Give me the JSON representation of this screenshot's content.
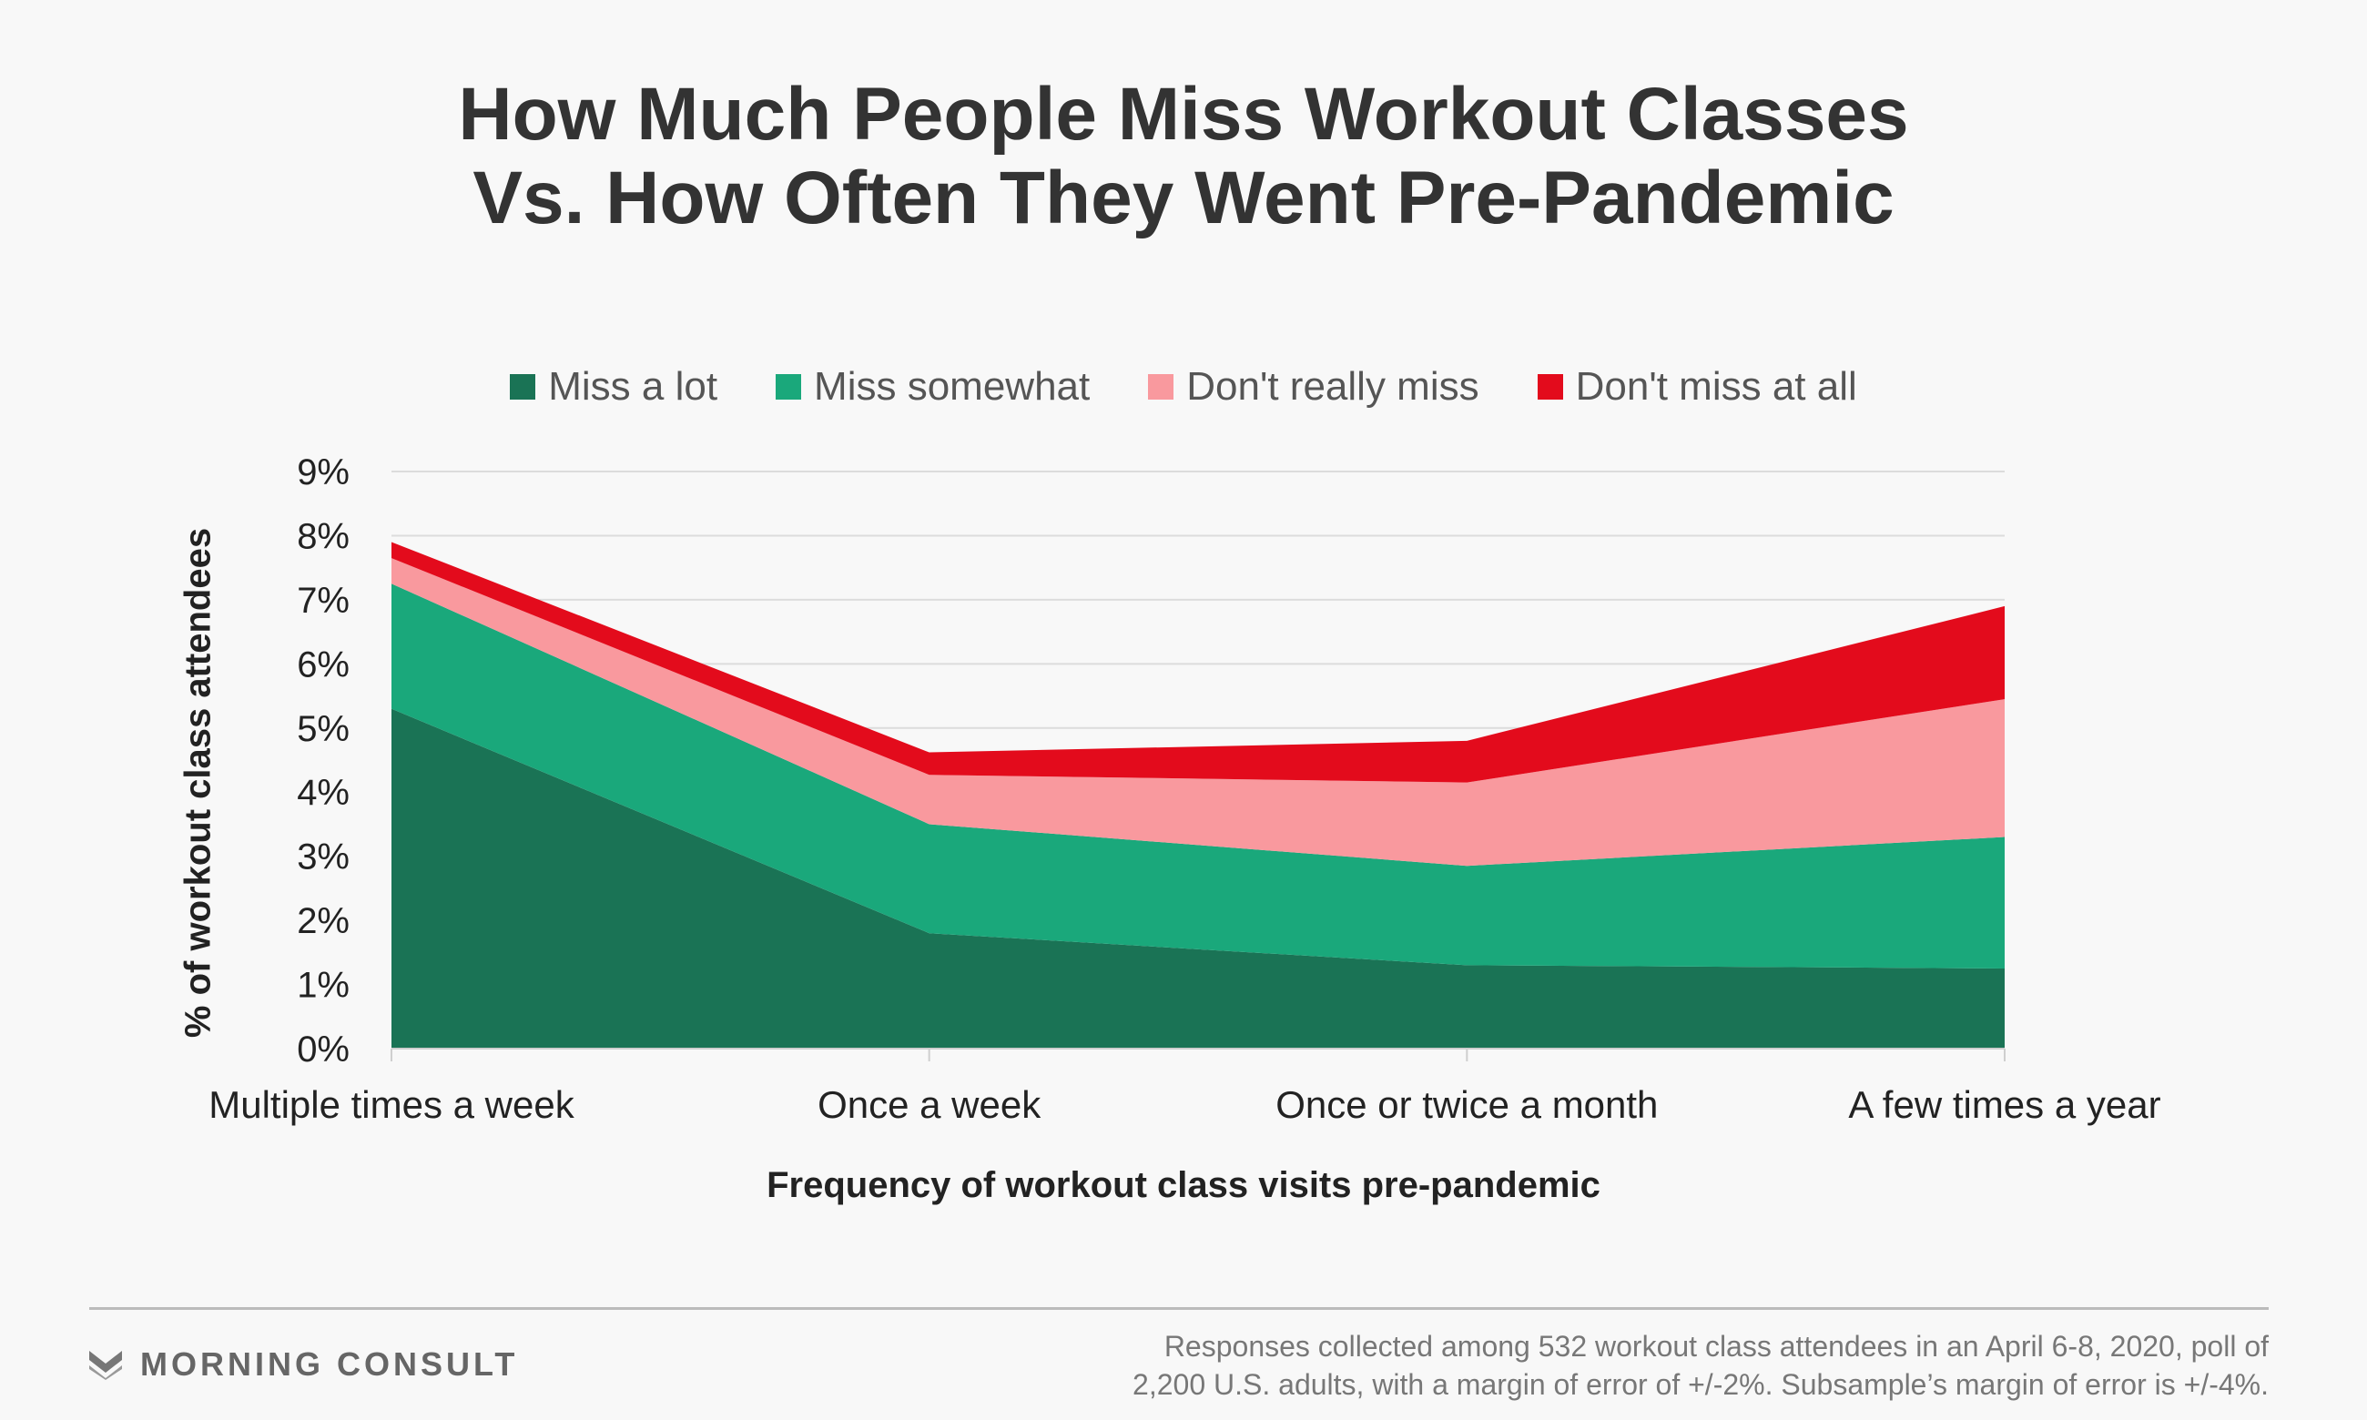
{
  "title": {
    "line1": "How Much People Miss Workout Classes",
    "line2": "Vs. How Often They Went Pre-Pandemic"
  },
  "chart_data": {
    "type": "area",
    "stacked": true,
    "categories": [
      "Multiple times a week",
      "Once a week",
      "Once or twice a month",
      "A few times a year"
    ],
    "series": [
      {
        "name": "Miss a lot",
        "color": "#1a7355",
        "values": [
          5.3,
          1.8,
          1.3,
          1.25
        ]
      },
      {
        "name": "Miss somewhat",
        "color": "#1aa87b",
        "values": [
          1.95,
          1.7,
          1.55,
          2.05
        ]
      },
      {
        "name": "Don't really miss",
        "color": "#f9999e",
        "values": [
          0.4,
          0.77,
          1.3,
          2.15
        ]
      },
      {
        "name": "Don't miss at all",
        "color": "#e30b1c",
        "values": [
          0.25,
          0.35,
          0.65,
          1.45
        ]
      }
    ],
    "ylim": [
      0,
      9
    ],
    "yticks": [
      "0%",
      "1%",
      "2%",
      "3%",
      "4%",
      "5%",
      "6%",
      "7%",
      "8%",
      "9%"
    ],
    "ylabel": "% of workout class attendees",
    "xlabel": "Frequency of workout class visits pre-pandemic",
    "grid": true,
    "legend": "top-center"
  },
  "footer": {
    "brand": "MORNING CONSULT",
    "note_line1": "Responses collected among 532 workout class attendees in an April 6-8, 2020, poll of",
    "note_line2": "2,200 U.S. adults, with a margin of error of +/-2%. Subsample’s margin of error is +/-4%."
  }
}
